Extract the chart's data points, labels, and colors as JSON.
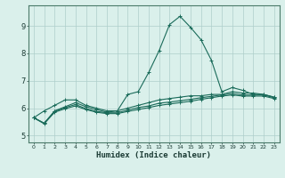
{
  "xlabel": "Humidex (Indice chaleur)",
  "ylabel": "",
  "background_color": "#daf0eb",
  "grid_color": "#aececa",
  "line_color": "#1a6b5a",
  "xlim": [
    -0.5,
    23.5
  ],
  "ylim": [
    4.75,
    9.75
  ],
  "yticks": [
    5,
    6,
    7,
    8,
    9
  ],
  "xticks": [
    0,
    1,
    2,
    3,
    4,
    5,
    6,
    7,
    8,
    9,
    10,
    11,
    12,
    13,
    14,
    15,
    16,
    17,
    18,
    19,
    20,
    21,
    22,
    23
  ],
  "series": [
    [
      5.65,
      5.9,
      6.1,
      6.3,
      6.3,
      6.1,
      6.0,
      5.9,
      5.9,
      6.5,
      6.6,
      7.3,
      8.1,
      9.05,
      9.35,
      8.95,
      8.5,
      7.75,
      6.6,
      6.75,
      6.65,
      6.5,
      6.5,
      6.4
    ],
    [
      5.65,
      5.45,
      5.9,
      6.05,
      6.2,
      6.05,
      5.95,
      5.85,
      5.9,
      6.0,
      6.1,
      6.2,
      6.3,
      6.35,
      6.4,
      6.45,
      6.45,
      6.5,
      6.5,
      6.6,
      6.55,
      6.55,
      6.5,
      6.4
    ],
    [
      5.65,
      5.45,
      5.88,
      6.02,
      6.13,
      5.98,
      5.88,
      5.83,
      5.83,
      5.93,
      6.02,
      6.08,
      6.18,
      6.22,
      6.27,
      6.32,
      6.38,
      6.43,
      6.48,
      6.53,
      6.48,
      6.48,
      6.48,
      6.38
    ],
    [
      5.65,
      5.43,
      5.85,
      5.98,
      6.08,
      5.95,
      5.85,
      5.8,
      5.8,
      5.88,
      5.95,
      6.02,
      6.1,
      6.15,
      6.2,
      6.25,
      6.32,
      6.38,
      6.44,
      6.48,
      6.44,
      6.44,
      6.44,
      6.35
    ]
  ]
}
